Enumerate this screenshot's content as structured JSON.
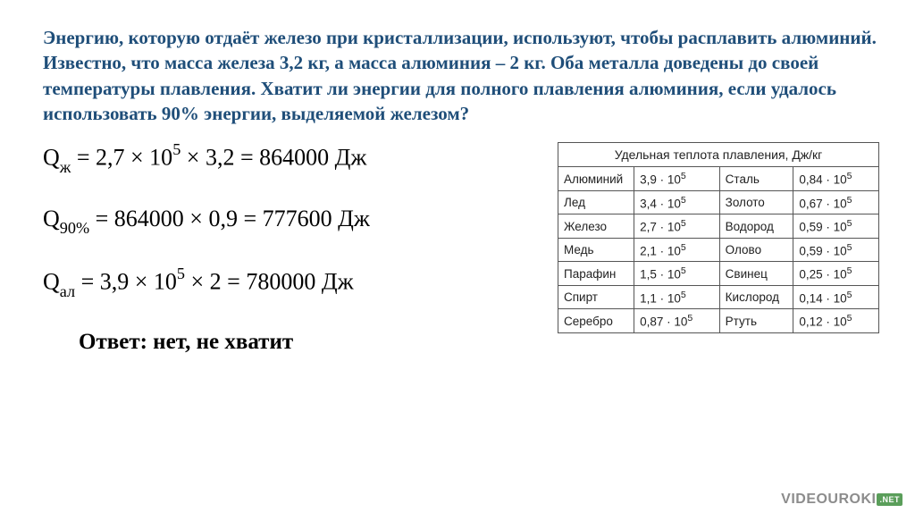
{
  "title": "Энергию, которую отдаёт железо при кристаллизации, используют, чтобы расплавить алюминий. Известно, что масса железа 3,2 кг, а масса алюминия – 2 кг. Оба металла доведены до своей температуры плавления. Хватит ли энергии для полного плавления алюминия, если удалось использовать  90% энергии, выделяемой железом?",
  "eq1": {
    "sym": "Q",
    "sub": "ж",
    "lhs": " = 2,7 × 10",
    "exp": "5",
    "mid": " × 3,2 = 864000 Дж"
  },
  "eq2": {
    "sym": "Q",
    "sub": "90%",
    "rest": " = 864000 × 0,9 = 777600 Дж"
  },
  "eq3": {
    "sym": "Q",
    "sub": "ал",
    "lhs": " = 3,9 × 10",
    "exp": "5",
    "mid": " × 2 = 780000 Дж"
  },
  "answer": "Ответ: нет, не хватит",
  "table": {
    "header": "Удельная теплота плавления, Дж/кг",
    "rows": [
      {
        "m1": "Алюминий",
        "c1": "3,9",
        "e1": "5",
        "m2": "Сталь",
        "c2": "0,84",
        "e2": "5"
      },
      {
        "m1": "Лед",
        "c1": "3,4",
        "e1": "5",
        "m2": "Золото",
        "c2": "0,67",
        "e2": "5"
      },
      {
        "m1": "Железо",
        "c1": "2,7",
        "e1": "5",
        "m2": "Водород",
        "c2": "0,59",
        "e2": "5"
      },
      {
        "m1": "Медь",
        "c1": "2,1",
        "e1": "5",
        "m2": "Олово",
        "c2": "0,59",
        "e2": "5"
      },
      {
        "m1": "Парафин",
        "c1": "1,5",
        "e1": "5",
        "m2": "Свинец",
        "c2": "0,25",
        "e2": "5"
      },
      {
        "m1": "Спирт",
        "c1": "1,1",
        "e1": "5",
        "m2": "Кислород",
        "c2": "0,14",
        "e2": "5"
      },
      {
        "m1": "Серебро",
        "c1": "0,87",
        "e1": "5",
        "m2": "Ртуть",
        "c2": "0,12",
        "e2": "5"
      }
    ]
  },
  "watermark": {
    "brand": "VIDEOUROKI",
    "suffix": ".NET"
  },
  "colors": {
    "title": "#1f4e79",
    "text": "#000000",
    "border": "#555555",
    "watermark": "#8c8c8c",
    "watermark_badge": "#5a9e5a",
    "background": "#ffffff"
  }
}
